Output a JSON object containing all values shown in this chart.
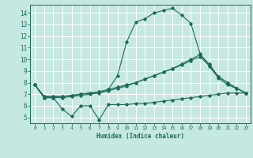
{
  "title": "",
  "xlabel": "Humidex (Indice chaleur)",
  "ylabel": "",
  "background_color": "#c6e8e2",
  "grid_color": "#ffffff",
  "line_color": "#1a6b5a",
  "xlim": [
    -0.5,
    23.5
  ],
  "ylim": [
    4.5,
    14.7
  ],
  "yticks": [
    5,
    6,
    7,
    8,
    9,
    10,
    11,
    12,
    13,
    14
  ],
  "xticks": [
    0,
    1,
    2,
    3,
    4,
    5,
    6,
    7,
    8,
    9,
    10,
    11,
    12,
    13,
    14,
    15,
    16,
    17,
    18,
    19,
    20,
    21,
    22,
    23
  ],
  "line1_x": [
    0,
    1,
    2,
    3,
    4,
    5,
    6,
    7,
    8,
    9,
    10,
    11,
    12,
    13,
    14,
    15,
    16,
    17,
    18,
    19,
    20,
    21,
    22,
    23
  ],
  "line1_y": [
    7.8,
    6.7,
    6.7,
    5.7,
    5.1,
    6.0,
    6.0,
    4.8,
    6.1,
    6.1,
    6.1,
    6.2,
    6.2,
    6.3,
    6.4,
    6.5,
    6.6,
    6.7,
    6.8,
    6.9,
    7.0,
    7.1,
    7.1,
    7.1
  ],
  "line2_x": [
    0,
    1,
    2,
    3,
    4,
    5,
    6,
    7,
    8,
    9,
    10,
    11,
    12,
    13,
    14,
    15,
    16,
    17,
    18,
    19,
    20,
    21,
    22,
    23
  ],
  "line2_y": [
    7.8,
    6.7,
    6.7,
    6.7,
    6.8,
    6.9,
    7.0,
    7.1,
    7.3,
    7.5,
    7.7,
    8.0,
    8.3,
    8.6,
    8.9,
    9.2,
    9.5,
    9.9,
    10.2,
    9.5,
    8.5,
    8.0,
    7.5,
    7.1
  ],
  "line3_x": [
    0,
    1,
    2,
    3,
    4,
    5,
    6,
    7,
    8,
    9,
    10,
    11,
    12,
    13,
    14,
    15,
    16,
    17,
    18,
    19,
    20,
    21,
    22,
    23
  ],
  "line3_y": [
    7.8,
    6.8,
    6.8,
    6.8,
    6.9,
    7.0,
    7.1,
    7.2,
    7.4,
    8.6,
    11.5,
    13.2,
    13.5,
    14.0,
    14.2,
    14.4,
    13.8,
    13.1,
    10.5,
    9.4,
    8.4,
    7.8,
    7.5,
    7.1
  ],
  "line4_x": [
    0,
    1,
    2,
    3,
    4,
    5,
    6,
    7,
    8,
    9,
    10,
    11,
    12,
    13,
    14,
    15,
    16,
    17,
    18,
    19,
    20,
    21,
    22,
    23
  ],
  "line4_y": [
    7.8,
    6.8,
    6.8,
    6.8,
    6.9,
    7.0,
    7.1,
    7.2,
    7.4,
    7.6,
    7.8,
    8.0,
    8.3,
    8.6,
    8.9,
    9.2,
    9.6,
    10.0,
    10.4,
    9.6,
    8.5,
    8.0,
    7.5,
    7.1
  ]
}
